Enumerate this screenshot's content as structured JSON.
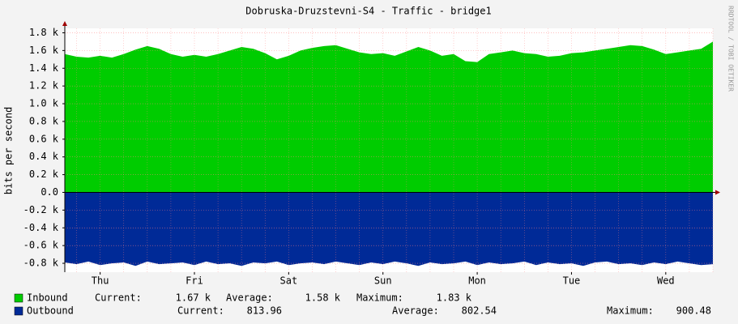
{
  "chart_data": {
    "type": "area",
    "title": "Dobruska-Druzstevni-S4 - Traffic - bridge1",
    "ylabel": "bits per second",
    "watermark": "RRDTOOL / TOBI OETIKER",
    "categories": [
      null,
      null,
      null,
      "Thu",
      null,
      null,
      null,
      null,
      null,
      null,
      null,
      "Fri",
      null,
      null,
      null,
      null,
      null,
      null,
      null,
      "Sat",
      null,
      null,
      null,
      null,
      null,
      null,
      null,
      "Sun",
      null,
      null,
      null,
      null,
      null,
      null,
      null,
      "Mon",
      null,
      null,
      null,
      null,
      null,
      null,
      null,
      "Tue",
      null,
      null,
      null,
      null,
      null,
      null,
      null,
      "Wed",
      null,
      null,
      null,
      null
    ],
    "ylim": [
      -900,
      1850
    ],
    "yticks": [
      {
        "value": -800,
        "label": "-0.8 k"
      },
      {
        "value": -600,
        "label": "-0.6 k"
      },
      {
        "value": -400,
        "label": "-0.4 k"
      },
      {
        "value": -200,
        "label": "-0.2 k"
      },
      {
        "value": 0,
        "label": "0.0"
      },
      {
        "value": 200,
        "label": "0.2 k"
      },
      {
        "value": 400,
        "label": "0.4 k"
      },
      {
        "value": 600,
        "label": "0.6 k"
      },
      {
        "value": 800,
        "label": "0.8 k"
      },
      {
        "value": 1000,
        "label": "1.0 k"
      },
      {
        "value": 1200,
        "label": "1.2 k"
      },
      {
        "value": 1400,
        "label": "1.4 k"
      },
      {
        "value": 1600,
        "label": "1.6 k"
      },
      {
        "value": 1800,
        "label": "1.8 k"
      }
    ],
    "grid": true,
    "series": [
      {
        "name": "Inbound",
        "color": "#00cc00",
        "values": [
          1560,
          1530,
          1520,
          1540,
          1520,
          1560,
          1610,
          1650,
          1620,
          1560,
          1530,
          1550,
          1530,
          1560,
          1600,
          1640,
          1620,
          1570,
          1500,
          1540,
          1600,
          1630,
          1650,
          1660,
          1620,
          1580,
          1560,
          1570,
          1540,
          1590,
          1640,
          1600,
          1540,
          1560,
          1480,
          1470,
          1560,
          1580,
          1600,
          1570,
          1560,
          1530,
          1540,
          1570,
          1580,
          1600,
          1620,
          1640,
          1660,
          1650,
          1610,
          1560,
          1580,
          1600,
          1620,
          1700
        ],
        "stats": [
          {
            "label": "Current:",
            "value": "1.67 k"
          },
          {
            "label": "Average:",
            "value": "1.58 k"
          },
          {
            "label": "Maximum:",
            "value": "1.83 k"
          }
        ]
      },
      {
        "name": "Outbound",
        "color": "#002a97",
        "values": [
          -790,
          -810,
          -780,
          -820,
          -800,
          -790,
          -830,
          -780,
          -810,
          -800,
          -790,
          -820,
          -780,
          -810,
          -800,
          -830,
          -790,
          -800,
          -780,
          -820,
          -800,
          -790,
          -810,
          -780,
          -800,
          -820,
          -790,
          -810,
          -780,
          -800,
          -830,
          -790,
          -810,
          -800,
          -780,
          -820,
          -790,
          -810,
          -800,
          -780,
          -820,
          -790,
          -810,
          -800,
          -830,
          -790,
          -780,
          -810,
          -800,
          -820,
          -790,
          -810,
          -780,
          -800,
          -820,
          -810
        ],
        "stats": [
          {
            "label": "Current:",
            "value": "813.96"
          },
          {
            "label": "Average:",
            "value": "802.54"
          },
          {
            "label": "Maximum:",
            "value": "900.48"
          }
        ]
      }
    ]
  }
}
